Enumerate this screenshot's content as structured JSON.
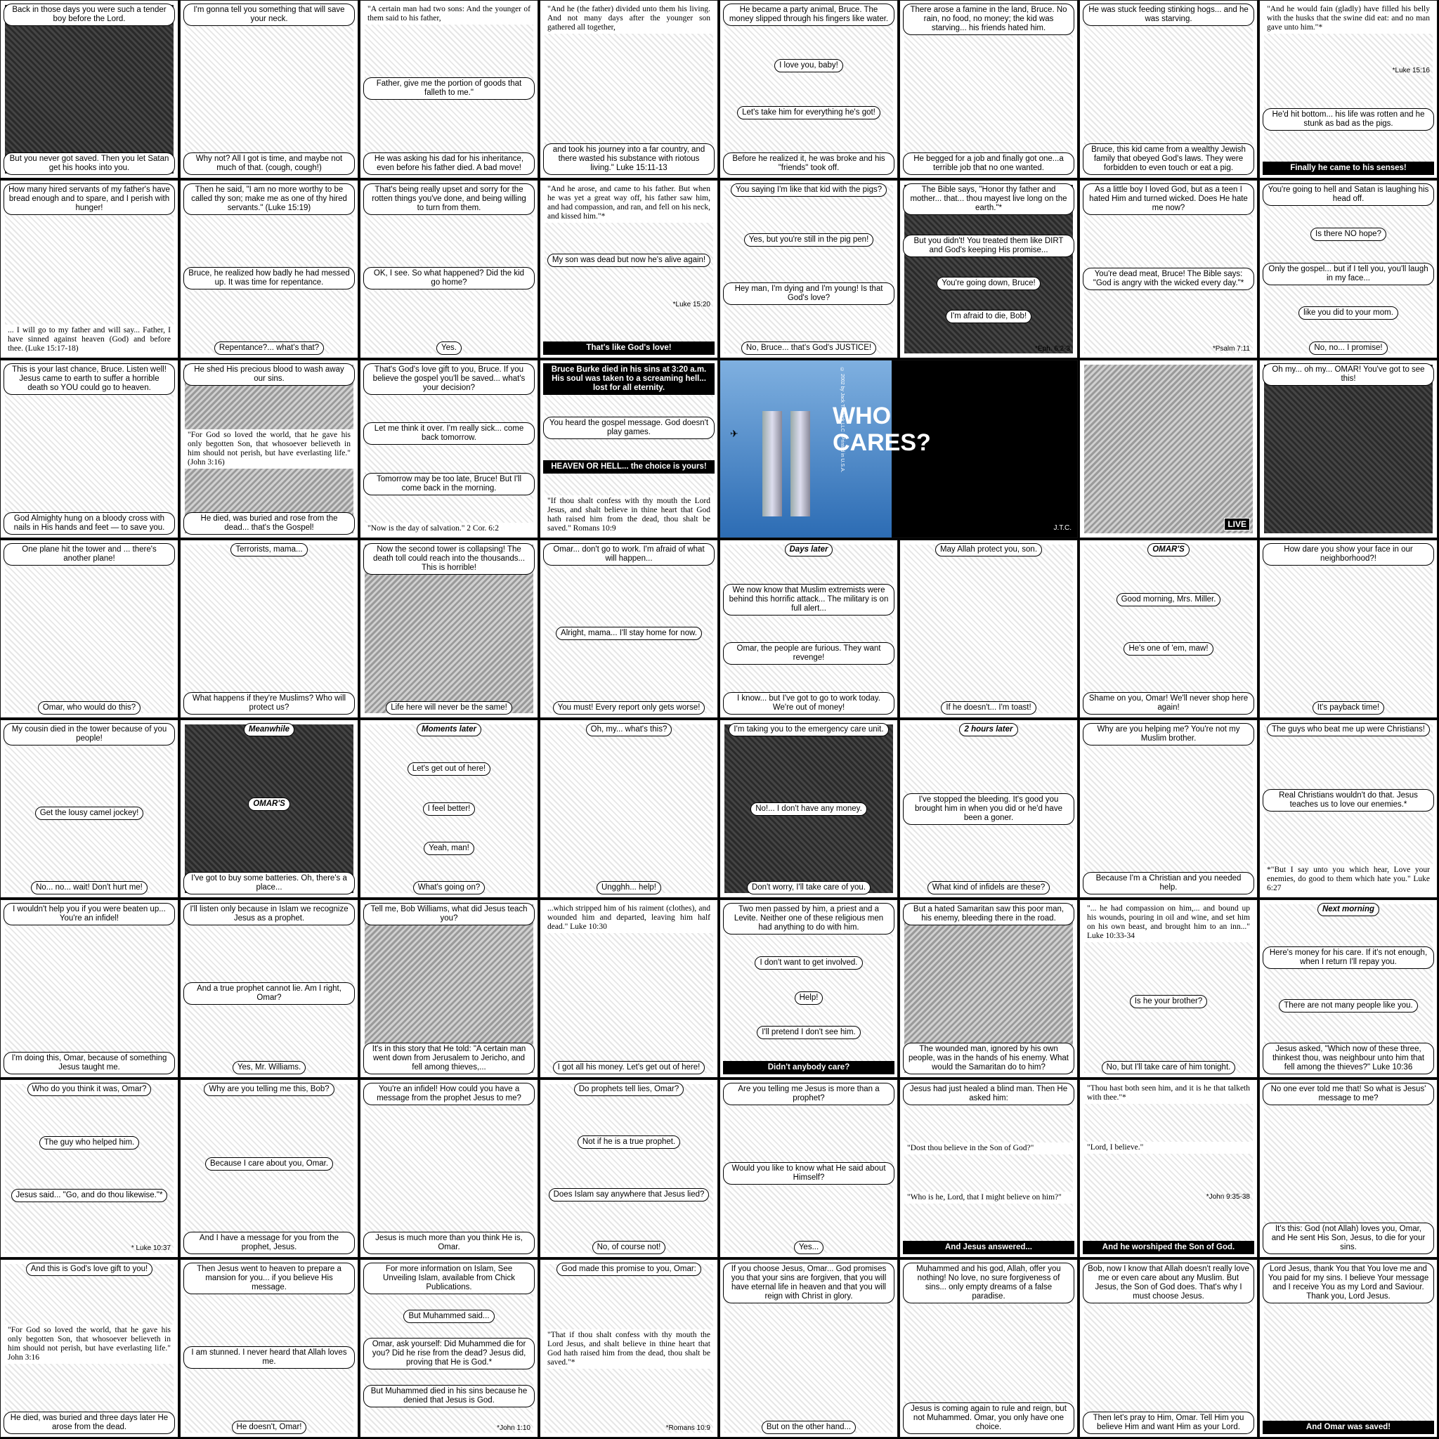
{
  "panels": [
    {
      "id": "p1",
      "art": "dark",
      "lines": [
        "Back in those days you were such a tender boy before the Lord.",
        "But you never got saved. Then you let Satan get his hooks into you."
      ]
    },
    {
      "id": "p2",
      "lines": [
        "I'm gonna tell you something that will save your neck.",
        "Why not? All I got is time, and maybe not much of that. (cough, cough!)"
      ]
    },
    {
      "id": "p3",
      "lines": [
        "\"A certain man had two sons: And the younger of them said to his father,",
        "Father, give me the portion of goods that falleth to me.\"",
        "He was asking his dad for his inheritance, even before his father died. A bad move!"
      ]
    },
    {
      "id": "p4",
      "lines": [
        "\"And he (the father) divided unto them his living. And not many days after the younger son gathered all together,",
        "and took his journey into a far country, and there wasted his substance with riotous living.\" Luke 15:11-13"
      ]
    },
    {
      "id": "p5",
      "lines": [
        "He became a party animal, Bruce. The money slipped through his fingers like water.",
        "I love you, baby!",
        "Let's take him for everything he's got!",
        "Before he realized it, he was broke and his \"friends\" took off."
      ]
    },
    {
      "id": "p6",
      "lines": [
        "There arose a famine in the land, Bruce. No rain, no food, no money; the kid was starving... his friends hated him.",
        "He begged for a job and finally got one...a terrible job that no one wanted."
      ]
    },
    {
      "id": "p7",
      "lines": [
        "He was stuck feeding stinking hogs... and he was starving.",
        "Bruce, this kid came from a wealthy Jewish family that obeyed God's laws. They were forbidden to even touch or eat a pig."
      ]
    },
    {
      "id": "p8",
      "lines": [
        "\"And he would fain (gladly) have filled his belly with the husks that the swine did eat: and no man gave unto him.\"*",
        "*Luke 15:16",
        "He'd hit bottom... his life was rotten and he stunk as bad as the pigs.",
        "Finally he came to his senses!"
      ]
    },
    {
      "id": "p9",
      "lines": [
        "How many hired servants of my father's have bread enough and to spare, and I perish with hunger!",
        "... I will go to my father and will say... Father, I have sinned against heaven (God) and before thee. (Luke 15:17-18)"
      ]
    },
    {
      "id": "p10",
      "lines": [
        "Then he said, \"I am no more worthy to be called thy son; make me as one of thy hired servants.\" (Luke 15:19)",
        "Bruce, he realized how badly he had messed up. It was time for repentance.",
        "Repentance?... what's that?"
      ]
    },
    {
      "id": "p11",
      "lines": [
        "That's being really upset and sorry for the rotten things you've done, and being willing to turn from them.",
        "OK, I see. So what happened? Did the kid go home?",
        "Yes."
      ]
    },
    {
      "id": "p12",
      "lines": [
        "\"And he arose, and came to his father. But when he was yet a great way off, his father saw him, and had compassion, and ran, and fell on his neck, and kissed him.\"*",
        "My son was dead but now he's alive again!",
        "*Luke 15:20",
        "That's like God's love!"
      ]
    },
    {
      "id": "p13",
      "lines": [
        "You saying I'm like that kid with the pigs?",
        "Yes, but you're still in the pig pen!",
        "Hey man, I'm dying and I'm young! Is that God's love?",
        "No, Bruce... that's God's JUSTICE!"
      ]
    },
    {
      "id": "p14",
      "art": "dark",
      "lines": [
        "The Bible says, \"Honor thy father and mother... that... thou mayest live long on the earth.\"*",
        "But you didn't! You treated them like DIRT and God's keeping His promise...",
        "You're going down, Bruce!",
        "I'm afraid to die, Bob!",
        "*Eph. 6:2-3"
      ]
    },
    {
      "id": "p15",
      "lines": [
        "As a little boy I loved God, but as a teen I hated Him and turned wicked. Does He hate me now?",
        "You're dead meat, Bruce! The Bible says: \"God is angry with the wicked every day.\"*",
        "*Psalm 7:11"
      ]
    },
    {
      "id": "p16",
      "lines": [
        "You're going to hell and Satan is laughing his head off.",
        "Is there NO hope?",
        "Only the gospel... but if I tell you, you'll laugh in my face...",
        "like you did to your mom.",
        "No, no... I promise!"
      ]
    },
    {
      "id": "p17",
      "lines": [
        "This is your last chance, Bruce. Listen well! Jesus came to earth to suffer a horrible death so YOU could go to heaven.",
        "God Almighty hung on a bloody cross with nails in His hands and feet — to save you."
      ]
    },
    {
      "id": "p18",
      "art": "mid",
      "lines": [
        "He shed His precious blood to wash away our sins.",
        "\"For God so loved the world, that he gave his only begotten Son, that whosoever believeth in him should not perish, but have everlasting life.\" (John 3:16)",
        "He died, was buried and rose from the dead... that's the Gospel!"
      ]
    },
    {
      "id": "p19",
      "lines": [
        "That's God's love gift to you, Bruce. If you believe the gospel you'll be saved... what's your decision?",
        "Let me think it over. I'm really sick... come back tomorrow.",
        "Tomorrow may be too late, Bruce! But I'll come back in the morning.",
        "\"Now is the day of salvation.\" 2 Cor. 6:2"
      ]
    },
    {
      "id": "p20",
      "lines": [
        "Bruce Burke died in his sins at 3:20 a.m. His soul was taken to a screaming hell... lost for all eternity.",
        "You heard the gospel message. God doesn't play games.",
        "HEAVEN OR HELL... the choice is yours!",
        "\"If thou shalt confess with thy mouth the Lord Jesus, and shalt believe in thine heart that God hath raised him from the dead, thou shalt be saved.\" Romans 10:9"
      ]
    },
    {
      "id": "p21",
      "cover": true,
      "title1": "WHO",
      "title2": "CARES?",
      "sig": "J.T.C.",
      "copyright": "© 2002 by Jack T. Chick LLC · Printed in U.S.A."
    },
    {
      "id": "p22",
      "art": "mid",
      "live": "LIVE",
      "lines": []
    },
    {
      "id": "p23",
      "art": "dark",
      "lines": [
        "Oh my... oh my... OMAR! You've got to see this!"
      ]
    },
    {
      "id": "p24",
      "lines": [
        "One plane hit the tower and ... there's another plane!",
        "Omar, who would do this?"
      ]
    },
    {
      "id": "p25",
      "lines": [
        "Terrorists, mama...",
        "What happens if they're Muslims? Who will protect us?"
      ]
    },
    {
      "id": "p26",
      "art": "mid",
      "lines": [
        "Now the second tower is collapsing! The death toll could reach into the thousands... This is horrible!",
        "Life here will never be the same!"
      ]
    },
    {
      "id": "p27",
      "lines": [
        "Omar... don't go to work. I'm afraid of what will happen...",
        "Alright, mama... I'll stay home for now.",
        "You must! Every report only gets worse!"
      ]
    },
    {
      "id": "p28",
      "lines": [
        "Days later",
        "We now know that Muslim extremists were behind this horrific attack... The military is on full alert...",
        "Omar, the people are furious. They want revenge!",
        "I know... but I've got to go to work today. We're out of money!"
      ]
    },
    {
      "id": "p29",
      "lines": [
        "May Allah protect you, son.",
        "If he doesn't... I'm toast!"
      ]
    },
    {
      "id": "p30",
      "lines": [
        "OMAR'S",
        "Good morning, Mrs. Miller.",
        "He's one of 'em, maw!",
        "Shame on you, Omar! We'll never shop here again!"
      ]
    },
    {
      "id": "p31",
      "lines": [
        "How dare you show your face in our neighborhood?!",
        "It's payback time!"
      ]
    },
    {
      "id": "p32",
      "lines": [
        "My cousin died in the tower because of you people!",
        "Get the lousy camel jockey!",
        "No... no... wait! Don't hurt me!"
      ]
    },
    {
      "id": "p33",
      "art": "dark",
      "lines": [
        "Meanwhile",
        "OMAR'S",
        "I've got to buy some batteries. Oh, there's a place..."
      ]
    },
    {
      "id": "p34",
      "lines": [
        "Moments later",
        "Let's get out of here!",
        "I feel better!",
        "Yeah, man!",
        "What's going on?"
      ]
    },
    {
      "id": "p35",
      "lines": [
        "Oh, my... what's this?",
        "Ungghh... help!"
      ]
    },
    {
      "id": "p36",
      "art": "dark",
      "lines": [
        "I'm taking you to the emergency care unit.",
        "No!... I don't have any money.",
        "Don't worry, I'll take care of you."
      ]
    },
    {
      "id": "p37",
      "lines": [
        "2 hours later",
        "I've stopped the bleeding. It's good you brought him in when you did or he'd have been a goner.",
        "What kind of infidels are these?"
      ]
    },
    {
      "id": "p38",
      "lines": [
        "Why are you helping me? You're not my Muslim brother.",
        "Because I'm a Christian and you needed help."
      ]
    },
    {
      "id": "p39",
      "lines": [
        "The guys who beat me up were Christians!",
        "Real Christians wouldn't do that. Jesus teaches us to love our enemies.*",
        "*\"But I say unto you which hear, Love your enemies, do good to them which hate you.\" Luke 6:27"
      ]
    },
    {
      "id": "p40",
      "lines": [
        "I wouldn't help you if you were beaten up... You're an infidel!",
        "I'm doing this, Omar, because of something Jesus taught me."
      ]
    },
    {
      "id": "p41",
      "lines": [
        "I'll listen only because in Islam we recognize Jesus as a prophet.",
        "And a true prophet cannot lie. Am I right, Omar?",
        "Yes, Mr. Williams."
      ]
    },
    {
      "id": "p42",
      "art": "mid",
      "lines": [
        "Tell me, Bob Williams, what did Jesus teach you?",
        "It's in this story that He told: \"A certain man went down from Jerusalem to Jericho, and fell among thieves,..."
      ]
    },
    {
      "id": "p43",
      "lines": [
        "...which stripped him of his raiment (clothes), and wounded him and departed, leaving him half dead.\" Luke 10:30",
        "I got all his money. Let's get out of here!"
      ]
    },
    {
      "id": "p44",
      "lines": [
        "Two men passed by him, a priest and a Levite. Neither one of these religious men had anything to do with him.",
        "I don't want to get involved.",
        "Help!",
        "I'll pretend I don't see him.",
        "Didn't anybody care?"
      ]
    },
    {
      "id": "p45",
      "art": "mid",
      "lines": [
        "But a hated Samaritan saw this poor man, his enemy, bleeding there in the road.",
        "The wounded man, ignored by his own people, was in the hands of his enemy. What would the Samaritan do to him?"
      ]
    },
    {
      "id": "p46",
      "lines": [
        "\"... he had compassion on him,... and bound up his wounds, pouring in oil and wine, and set him on his own beast, and brought him to an inn...\" Luke 10:33-34",
        "Is he your brother?",
        "No, but I'll take care of him tonight."
      ]
    },
    {
      "id": "p47",
      "lines": [
        "Next morning",
        "Here's money for his care. If it's not enough, when I return I'll repay you.",
        "There are not many people like you.",
        "Jesus asked, \"Which now of these three, thinkest thou, was neighbour unto him that fell among the thieves?\" Luke 10:36"
      ]
    },
    {
      "id": "p48",
      "lines": [
        "Who do you think it was, Omar?",
        "The guy who helped him.",
        "Jesus said... \"Go, and do thou likewise.\"*",
        "* Luke 10:37"
      ]
    },
    {
      "id": "p49",
      "lines": [
        "Why are you telling me this, Bob?",
        "Because I care about you, Omar.",
        "And I have a message for you from the prophet, Jesus."
      ]
    },
    {
      "id": "p50",
      "lines": [
        "You're an infidel! How could you have a message from the prophet Jesus to me?",
        "Jesus is much more than you think He is, Omar."
      ]
    },
    {
      "id": "p51",
      "lines": [
        "Do prophets tell lies, Omar?",
        "Not if he is a true prophet.",
        "Does Islam say anywhere that Jesus lied?",
        "No, of course not!"
      ]
    },
    {
      "id": "p52",
      "lines": [
        "Are you telling me Jesus is more than a prophet?",
        "Would you like to know what He said about Himself?",
        "Yes..."
      ]
    },
    {
      "id": "p53",
      "lines": [
        "Jesus had just healed a blind man. Then He asked him:",
        "\"Dost thou believe in the Son of God?\"",
        "\"Who is he, Lord, that I might believe on him?\"",
        "And Jesus answered..."
      ]
    },
    {
      "id": "p54",
      "lines": [
        "\"Thou hast both seen him, and it is he that talketh with thee.\"*",
        "\"Lord, I believe.\"",
        "*John 9:35-38",
        "And he worshiped the Son of God."
      ]
    },
    {
      "id": "p55",
      "lines": [
        "No one ever told me that! So what is Jesus' message to me?",
        "It's this: God (not Allah) loves you, Omar, and He sent His Son, Jesus, to die for your sins."
      ]
    },
    {
      "id": "p56",
      "lines": [
        "And this is God's love gift to you!",
        "\"For God so loved the world, that he gave his only begotten Son, that whosoever believeth in him should not perish, but have everlasting life.\" John 3:16",
        "He died, was buried and three days later He arose from the dead."
      ]
    },
    {
      "id": "p57",
      "lines": [
        "Then Jesus went to heaven to prepare a mansion for you... if you believe His message.",
        "I am stunned. I never heard that Allah loves me.",
        "He doesn't, Omar!"
      ]
    },
    {
      "id": "p58",
      "lines": [
        "For more information on Islam, See Unveiling Islam, available from Chick Publications.",
        "But Muhammed said...",
        "Omar, ask yourself: Did Muhammed die for you? Did he rise from the dead? Jesus did, proving that He is God.*",
        "But Muhammed died in his sins because he denied that Jesus is God.",
        "*John 1:10"
      ]
    },
    {
      "id": "p59",
      "lines": [
        "God made this promise to you, Omar:",
        "\"That if thou shalt confess with thy mouth the Lord Jesus, and shalt believe in thine heart that God hath raised him from the dead, thou shalt be saved.\"*",
        "*Romans 10:9"
      ]
    },
    {
      "id": "p60",
      "lines": [
        "If you choose Jesus, Omar... God promises you that your sins are forgiven, that you will have eternal life in heaven and that you will reign with Christ in glory.",
        "But on the other hand..."
      ]
    },
    {
      "id": "p61",
      "lines": [
        "Muhammed and his god, Allah, offer you nothing! No love, no sure forgiveness of sins... only empty dreams of a false paradise.",
        "Jesus is coming again to rule and reign, but not Muhammed. Omar, you only have one choice."
      ]
    },
    {
      "id": "p62",
      "lines": [
        "Bob, now I know that Allah doesn't really love me or even care about any Muslim. But Jesus, the Son of God does. That's why I must choose Jesus.",
        "Then let's pray to Him, Omar. Tell Him you believe Him and want Him as your Lord."
      ]
    },
    {
      "id": "p63",
      "lines": [
        "Lord Jesus, thank You that You love me and You paid for my sins. I believe Your message and I receive You as my Lord and Saviour. Thank you, Lord Jesus.",
        "And Omar was saved!"
      ]
    }
  ]
}
